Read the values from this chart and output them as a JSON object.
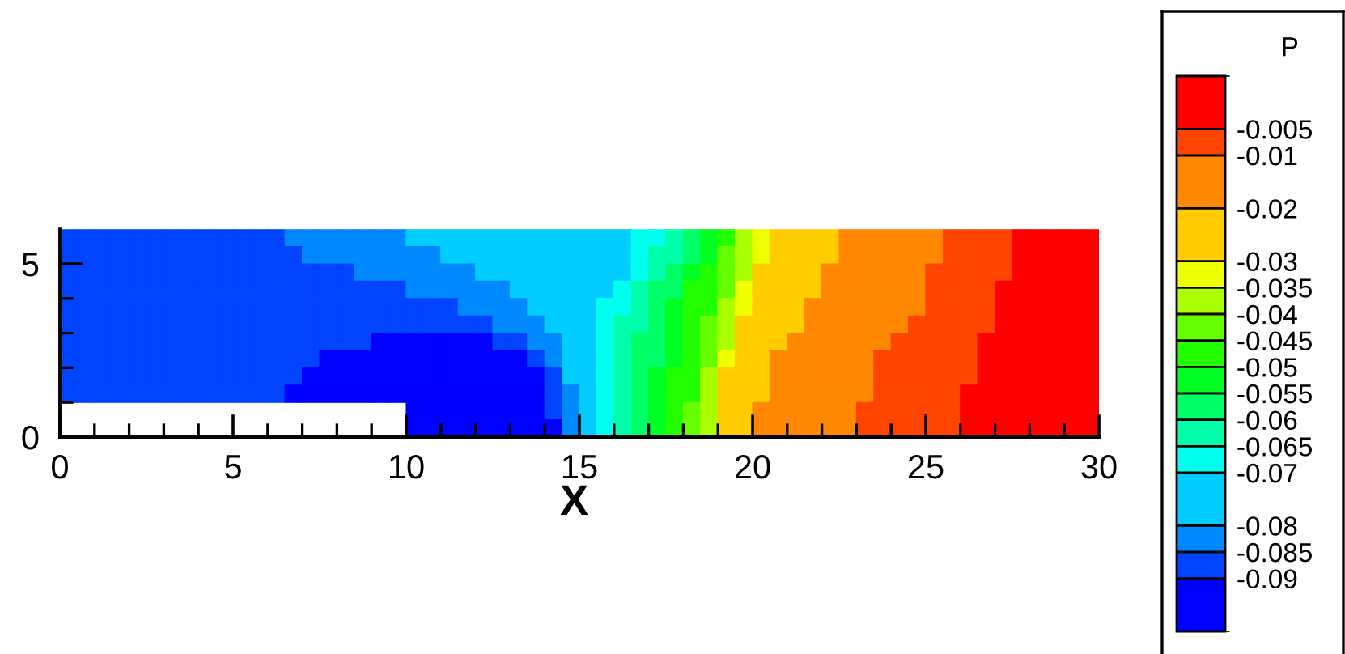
{
  "chart_data": {
    "type": "heatmap",
    "xlabel": "X",
    "clabel": "P",
    "xlim": [
      0,
      30
    ],
    "ylim": [
      0,
      6
    ],
    "xticks": [
      0,
      {
        "value": 1,
        "label": null
      },
      {
        "value": 2,
        "label": null
      },
      {
        "value": 3,
        "label": null
      },
      {
        "value": 4,
        "label": null
      },
      5,
      {
        "value": 6,
        "label": null
      },
      {
        "value": 7,
        "label": null
      },
      {
        "value": 8,
        "label": null
      },
      {
        "value": 9,
        "label": null
      },
      10,
      {
        "value": 11,
        "label": null
      },
      {
        "value": 12,
        "label": null
      },
      {
        "value": 13,
        "label": null
      },
      {
        "value": 14,
        "label": null
      },
      15,
      {
        "value": 16,
        "label": null
      },
      {
        "value": 17,
        "label": null
      },
      {
        "value": 18,
        "label": null
      },
      {
        "value": 19,
        "label": null
      },
      20,
      {
        "value": 21,
        "label": null
      },
      {
        "value": 22,
        "label": null
      },
      {
        "value": 23,
        "label": null
      },
      {
        "value": 24,
        "label": null
      },
      25,
      {
        "value": 26,
        "label": null
      },
      {
        "value": 27,
        "label": null
      },
      {
        "value": 28,
        "label": null
      },
      {
        "value": 29,
        "label": null
      },
      30
    ],
    "yticks": [
      0,
      {
        "value": 1,
        "label": null
      },
      {
        "value": 2,
        "label": null
      },
      {
        "value": 3,
        "label": null
      },
      {
        "value": 4,
        "label": null
      },
      5
    ],
    "clim": [
      -0.1,
      0.005
    ],
    "cticks": [
      -0.005,
      -0.01,
      -0.02,
      -0.03,
      -0.035,
      -0.04,
      -0.045,
      -0.05,
      -0.055,
      -0.06,
      -0.065,
      -0.07,
      -0.08,
      -0.085,
      -0.09
    ],
    "cells": [
      [
        -0.0875,
        -0.0875,
        -0.0875,
        -0.0875,
        -0.0875,
        -0.0875,
        -0.0875,
        -0.0875,
        -0.0875,
        -0.0875,
        -0.0875,
        -0.0875,
        -0.0875,
        -0.0825,
        -0.0825,
        -0.0825,
        -0.0825,
        -0.0825,
        -0.0825,
        -0.0825,
        -0.075,
        -0.075,
        -0.075,
        -0.075,
        -0.075,
        -0.075,
        -0.075,
        -0.075,
        -0.075,
        -0.075,
        -0.075,
        -0.075,
        -0.075,
        -0.0675,
        -0.0675,
        -0.0625,
        -0.0575,
        -0.0525,
        -0.0475,
        -0.0375,
        -0.0325,
        -0.025,
        -0.025,
        -0.025,
        -0.025,
        -0.015,
        -0.015,
        -0.015,
        -0.015,
        -0.015,
        -0.015,
        -0.0075,
        -0.0075,
        -0.0075,
        -0.0075,
        0,
        0,
        0,
        0,
        0
      ],
      [
        -0.0875,
        -0.0875,
        -0.0875,
        -0.0875,
        -0.0875,
        -0.0875,
        -0.0875,
        -0.0875,
        -0.0875,
        -0.0875,
        -0.0875,
        -0.0875,
        -0.0875,
        -0.0875,
        -0.0825,
        -0.0825,
        -0.0825,
        -0.0825,
        -0.0825,
        -0.0825,
        -0.0825,
        -0.0825,
        -0.075,
        -0.075,
        -0.075,
        -0.075,
        -0.075,
        -0.075,
        -0.075,
        -0.075,
        -0.075,
        -0.075,
        -0.075,
        -0.0675,
        -0.0625,
        -0.0625,
        -0.0575,
        -0.0525,
        -0.0425,
        -0.0375,
        -0.0325,
        -0.025,
        -0.025,
        -0.025,
        -0.025,
        -0.015,
        -0.015,
        -0.015,
        -0.015,
        -0.015,
        -0.015,
        -0.0075,
        -0.0075,
        -0.0075,
        -0.0075,
        0,
        0,
        0,
        0,
        0
      ],
      [
        -0.0875,
        -0.0875,
        -0.0875,
        -0.0875,
        -0.0875,
        -0.0875,
        -0.0875,
        -0.0875,
        -0.0875,
        -0.0875,
        -0.0875,
        -0.0875,
        -0.0875,
        -0.0875,
        -0.0875,
        -0.0875,
        -0.0875,
        -0.0825,
        -0.0825,
        -0.0825,
        -0.0825,
        -0.0825,
        -0.0825,
        -0.0825,
        -0.075,
        -0.075,
        -0.075,
        -0.075,
        -0.075,
        -0.075,
        -0.075,
        -0.075,
        -0.075,
        -0.0675,
        -0.0625,
        -0.0575,
        -0.0525,
        -0.0475,
        -0.0425,
        -0.0375,
        -0.025,
        -0.025,
        -0.025,
        -0.025,
        -0.015,
        -0.015,
        -0.015,
        -0.015,
        -0.015,
        -0.015,
        -0.0075,
        -0.0075,
        -0.0075,
        -0.0075,
        -0.0075,
        0,
        0,
        0,
        0,
        0
      ],
      [
        -0.0875,
        -0.0875,
        -0.0875,
        -0.0875,
        -0.0875,
        -0.0875,
        -0.0875,
        -0.0875,
        -0.0875,
        -0.0875,
        -0.0875,
        -0.0875,
        -0.0875,
        -0.0875,
        -0.0875,
        -0.0875,
        -0.0875,
        -0.0875,
        -0.0875,
        -0.0875,
        -0.0825,
        -0.0825,
        -0.0825,
        -0.0825,
        -0.0825,
        -0.0825,
        -0.075,
        -0.075,
        -0.075,
        -0.075,
        -0.075,
        -0.075,
        -0.0675,
        -0.0625,
        -0.0575,
        -0.0575,
        -0.0475,
        -0.0475,
        -0.0425,
        -0.0325,
        -0.025,
        -0.025,
        -0.025,
        -0.025,
        -0.015,
        -0.015,
        -0.015,
        -0.015,
        -0.015,
        -0.015,
        -0.0075,
        -0.0075,
        -0.0075,
        -0.0075,
        0,
        0,
        0,
        0,
        0,
        0
      ],
      [
        -0.0875,
        -0.0875,
        -0.0875,
        -0.0875,
        -0.0875,
        -0.0875,
        -0.0875,
        -0.0875,
        -0.0875,
        -0.0875,
        -0.0875,
        -0.0875,
        -0.0875,
        -0.0875,
        -0.0875,
        -0.0875,
        -0.0875,
        -0.0875,
        -0.0875,
        -0.0875,
        -0.0875,
        -0.0875,
        -0.0875,
        -0.0825,
        -0.0825,
        -0.0825,
        -0.0825,
        -0.075,
        -0.075,
        -0.075,
        -0.075,
        -0.0675,
        -0.0675,
        -0.0625,
        -0.0575,
        -0.0525,
        -0.0475,
        -0.0475,
        -0.0375,
        -0.0325,
        -0.025,
        -0.025,
        -0.025,
        -0.015,
        -0.015,
        -0.015,
        -0.015,
        -0.015,
        -0.015,
        -0.015,
        -0.0075,
        -0.0075,
        -0.0075,
        -0.0075,
        0,
        0,
        0,
        0,
        0,
        0
      ],
      [
        -0.0875,
        -0.0875,
        -0.0875,
        -0.0875,
        -0.0875,
        -0.0875,
        -0.0875,
        -0.0875,
        -0.0875,
        -0.0875,
        -0.0875,
        -0.0875,
        -0.0875,
        -0.0875,
        -0.0875,
        -0.0875,
        -0.0875,
        -0.0875,
        -0.0875,
        -0.0875,
        -0.0875,
        -0.0875,
        -0.0875,
        -0.0875,
        -0.0875,
        -0.0825,
        -0.0825,
        -0.0825,
        -0.075,
        -0.075,
        -0.075,
        -0.0675,
        -0.0625,
        -0.0625,
        -0.0575,
        -0.0525,
        -0.0475,
        -0.0425,
        -0.0375,
        -0.025,
        -0.025,
        -0.025,
        -0.025,
        -0.015,
        -0.015,
        -0.015,
        -0.015,
        -0.015,
        -0.015,
        -0.0075,
        -0.0075,
        -0.0075,
        -0.0075,
        -0.0075,
        0,
        0,
        0,
        0,
        0,
        0
      ],
      [
        -0.0875,
        -0.0875,
        -0.0875,
        -0.0875,
        -0.0875,
        -0.0875,
        -0.0875,
        -0.0875,
        -0.0875,
        -0.0875,
        -0.0875,
        -0.0875,
        -0.0875,
        -0.0875,
        -0.0875,
        -0.0875,
        -0.0875,
        -0.0875,
        -0.095,
        -0.095,
        -0.095,
        -0.095,
        -0.095,
        -0.095,
        -0.095,
        -0.0875,
        -0.0875,
        -0.0825,
        -0.0825,
        -0.075,
        -0.075,
        -0.0675,
        -0.0625,
        -0.0575,
        -0.0575,
        -0.0525,
        -0.0475,
        -0.0425,
        -0.0375,
        -0.025,
        -0.025,
        -0.025,
        -0.015,
        -0.015,
        -0.015,
        -0.015,
        -0.015,
        -0.015,
        -0.0075,
        -0.0075,
        -0.0075,
        -0.0075,
        -0.0075,
        0,
        0,
        0,
        0,
        0,
        0,
        0
      ],
      [
        -0.0875,
        -0.0875,
        -0.0875,
        -0.0875,
        -0.0875,
        -0.0875,
        -0.0875,
        -0.0875,
        -0.0875,
        -0.0875,
        -0.0875,
        -0.0875,
        -0.0875,
        -0.0875,
        -0.0875,
        -0.095,
        -0.095,
        -0.095,
        -0.095,
        -0.095,
        -0.095,
        -0.095,
        -0.095,
        -0.095,
        -0.095,
        -0.095,
        -0.095,
        -0.0875,
        -0.0825,
        -0.075,
        -0.075,
        -0.0675,
        -0.0625,
        -0.0575,
        -0.0575,
        -0.0525,
        -0.0475,
        -0.0425,
        -0.0325,
        -0.025,
        -0.025,
        -0.015,
        -0.015,
        -0.015,
        -0.015,
        -0.015,
        -0.015,
        -0.0075,
        -0.0075,
        -0.0075,
        -0.0075,
        -0.0075,
        -0.0075,
        0,
        0,
        0,
        0,
        0,
        0,
        0
      ],
      [
        -0.0875,
        -0.0875,
        -0.0875,
        -0.0875,
        -0.0875,
        -0.0875,
        -0.0875,
        -0.0875,
        -0.0875,
        -0.0875,
        -0.0875,
        -0.0875,
        -0.0875,
        -0.0875,
        -0.095,
        -0.095,
        -0.095,
        -0.095,
        -0.095,
        -0.095,
        -0.095,
        -0.095,
        -0.095,
        -0.095,
        -0.095,
        -0.095,
        -0.095,
        -0.095,
        -0.0875,
        -0.075,
        -0.075,
        -0.0675,
        -0.0625,
        -0.0575,
        -0.0525,
        -0.0475,
        -0.0475,
        -0.0375,
        -0.025,
        -0.025,
        -0.025,
        -0.015,
        -0.015,
        -0.015,
        -0.015,
        -0.015,
        -0.015,
        -0.0075,
        -0.0075,
        -0.0075,
        -0.0075,
        -0.0075,
        -0.0075,
        0,
        0,
        0,
        0,
        0,
        0,
        0
      ],
      [
        -0.0875,
        -0.0875,
        -0.0875,
        -0.0875,
        -0.0875,
        -0.0875,
        -0.0875,
        -0.0875,
        -0.0875,
        -0.0875,
        -0.0875,
        -0.0875,
        -0.0875,
        -0.095,
        -0.095,
        -0.095,
        -0.095,
        -0.095,
        -0.095,
        -0.095,
        -0.095,
        -0.095,
        -0.095,
        -0.095,
        -0.095,
        -0.095,
        -0.095,
        -0.095,
        -0.0875,
        -0.0825,
        -0.075,
        -0.0675,
        -0.0625,
        -0.0575,
        -0.0525,
        -0.0475,
        -0.0475,
        -0.0375,
        -0.025,
        -0.025,
        -0.025,
        -0.015,
        -0.015,
        -0.015,
        -0.015,
        -0.015,
        -0.015,
        -0.0075,
        -0.0075,
        -0.0075,
        -0.0075,
        -0.0075,
        0,
        0,
        0,
        0,
        0,
        0,
        0,
        0
      ],
      [
        null,
        null,
        null,
        null,
        null,
        null,
        null,
        null,
        null,
        null,
        null,
        null,
        null,
        null,
        null,
        null,
        null,
        null,
        null,
        null,
        -0.095,
        -0.095,
        -0.095,
        -0.095,
        -0.095,
        -0.095,
        -0.095,
        -0.095,
        -0.0875,
        -0.0825,
        -0.075,
        -0.0675,
        -0.0625,
        -0.0575,
        -0.0525,
        -0.0475,
        -0.0425,
        -0.0375,
        -0.025,
        -0.025,
        -0.015,
        -0.015,
        -0.015,
        -0.015,
        -0.015,
        -0.015,
        -0.0075,
        -0.0075,
        -0.0075,
        -0.0075,
        -0.0075,
        -0.0075,
        0,
        0,
        0,
        0,
        0,
        0,
        0,
        0
      ],
      [
        null,
        null,
        null,
        null,
        null,
        null,
        null,
        null,
        null,
        null,
        null,
        null,
        null,
        null,
        null,
        null,
        null,
        null,
        null,
        null,
        -0.095,
        -0.095,
        -0.095,
        -0.095,
        -0.095,
        -0.095,
        -0.095,
        -0.095,
        -0.095,
        -0.0825,
        -0.075,
        -0.0675,
        -0.0625,
        -0.0575,
        -0.0525,
        -0.0475,
        -0.0425,
        -0.0375,
        -0.025,
        -0.025,
        -0.015,
        -0.015,
        -0.015,
        -0.015,
        -0.015,
        -0.015,
        -0.0075,
        -0.0075,
        -0.0075,
        -0.0075,
        -0.0075,
        -0.0075,
        0,
        0,
        0,
        0,
        0,
        0,
        0,
        0
      ]
    ]
  }
}
